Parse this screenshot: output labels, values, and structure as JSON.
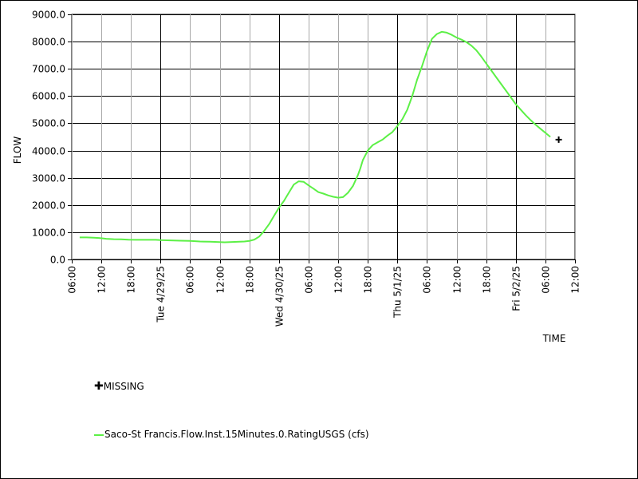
{
  "chart_data": {
    "type": "line",
    "ylabel": "FLOW",
    "xlabel": "TIME",
    "ylim": [
      0,
      9000
    ],
    "xlim_hours": [
      0,
      102
    ],
    "yticks": [
      "0.0",
      "1000.0",
      "2000.0",
      "3000.0",
      "4000.0",
      "5000.0",
      "6000.0",
      "7000.0",
      "8000.0",
      "9000.0"
    ],
    "xticks": [
      {
        "h": 0,
        "label": "06:00",
        "major": false
      },
      {
        "h": 6,
        "label": "12:00",
        "major": false
      },
      {
        "h": 12,
        "label": "18:00",
        "major": false
      },
      {
        "h": 18,
        "label": "Tue 4/29/25",
        "major": true
      },
      {
        "h": 24,
        "label": "06:00",
        "major": false
      },
      {
        "h": 30,
        "label": "12:00",
        "major": false
      },
      {
        "h": 36,
        "label": "18:00",
        "major": false
      },
      {
        "h": 42,
        "label": "Wed 4/30/25",
        "major": true
      },
      {
        "h": 48,
        "label": "06:00",
        "major": false
      },
      {
        "h": 54,
        "label": "12:00",
        "major": false
      },
      {
        "h": 60,
        "label": "18:00",
        "major": false
      },
      {
        "h": 66,
        "label": "Thu 5/1/25",
        "major": true
      },
      {
        "h": 72,
        "label": "06:00",
        "major": false
      },
      {
        "h": 78,
        "label": "12:00",
        "major": false
      },
      {
        "h": 84,
        "label": "18:00",
        "major": false
      },
      {
        "h": 90,
        "label": "Fri 5/2/25",
        "major": true
      },
      {
        "h": 96,
        "label": "06:00",
        "major": false
      },
      {
        "h": 102,
        "label": "12:00",
        "major": false
      }
    ],
    "series": [
      {
        "name": "Saco-St Francis.Flow.Inst.15Minutes.0.RatingUSGS (cfs)",
        "color": "#5cf046",
        "x": [
          1.6,
          3,
          4.5,
          5.5,
          7,
          8.5,
          10,
          11.5,
          13,
          15,
          17,
          18,
          20,
          22,
          24,
          26,
          28,
          30,
          31,
          32,
          34,
          35,
          36,
          37,
          38,
          39,
          40,
          41,
          42,
          43,
          43.5,
          44,
          45,
          46,
          47,
          48,
          49,
          50,
          51,
          52,
          53,
          54,
          55,
          56,
          57,
          58,
          58.5,
          59,
          60,
          61,
          62,
          63,
          64,
          65,
          66,
          67,
          68,
          69,
          70,
          71,
          72,
          73,
          74,
          75,
          76,
          77,
          78,
          79,
          80,
          81,
          82,
          83,
          84,
          85,
          86,
          87,
          88,
          89,
          90,
          91,
          92,
          93,
          94,
          95,
          96,
          97
        ],
        "y": [
          810,
          810,
          800,
          790,
          760,
          745,
          740,
          725,
          720,
          720,
          720,
          710,
          700,
          690,
          680,
          660,
          650,
          640,
          630,
          640,
          650,
          660,
          680,
          730,
          840,
          1050,
          1300,
          1600,
          1900,
          2150,
          2300,
          2450,
          2750,
          2870,
          2850,
          2720,
          2600,
          2470,
          2420,
          2350,
          2300,
          2270,
          2290,
          2450,
          2700,
          3100,
          3350,
          3650,
          4000,
          4200,
          4300,
          4400,
          4550,
          4680,
          4900,
          5150,
          5500,
          6000,
          6600,
          7100,
          7650,
          8100,
          8280,
          8360,
          8330,
          8250,
          8150,
          8070,
          7980,
          7850,
          7680,
          7450,
          7200,
          6950,
          6700,
          6450,
          6200,
          5950,
          5700,
          5500,
          5300,
          5120,
          4950,
          4800,
          4650,
          4500
        ]
      }
    ],
    "missing_points": [
      {
        "x": 98.7,
        "y": 4400
      }
    ],
    "grid": true,
    "legend_items": [
      "MISSING",
      "Saco-St Francis.Flow.Inst.15Minutes.0.RatingUSGS (cfs)"
    ],
    "legend_placement": "bottom-left"
  }
}
